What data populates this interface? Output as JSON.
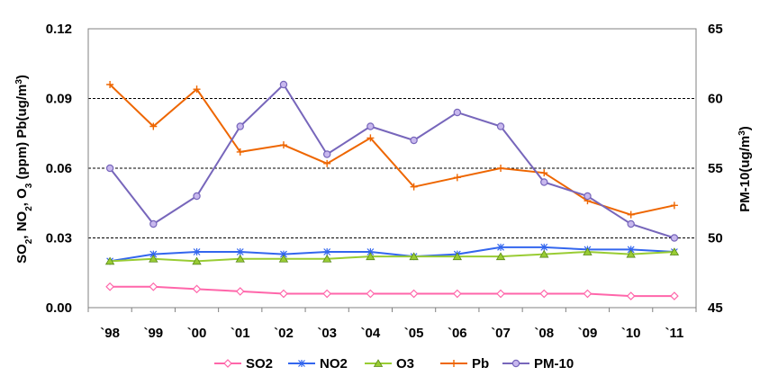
{
  "chart_data": {
    "type": "line",
    "categories": [
      "`98",
      "`99",
      "`00",
      "`01",
      "`02",
      "`03",
      "`04",
      "`05",
      "`06",
      "`07",
      "`08",
      "`09",
      "`10",
      "`11"
    ],
    "left_axis": {
      "label_parts": [
        "SO",
        "2",
        ", NO",
        "2",
        ", O",
        "3",
        " (ppm)  Pb(ug/m",
        "3",
        ")"
      ],
      "ylim": [
        0,
        0.12
      ],
      "ticks": [
        "0.00",
        "0.03",
        "0.06",
        "0.09",
        "0.12"
      ]
    },
    "right_axis": {
      "label_parts": [
        "PM-10(ug/m",
        "3",
        ")"
      ],
      "ylim": [
        45,
        65
      ],
      "ticks": [
        "45",
        "50",
        "55",
        "60",
        "65"
      ]
    },
    "gridlines": [
      0.03,
      0.06,
      0.09
    ],
    "legend_position": "bottom",
    "series": [
      {
        "name": "SO2",
        "axis": "left",
        "color": "#ff66aa",
        "marker": "diamond",
        "values": [
          0.009,
          0.009,
          0.008,
          0.007,
          0.006,
          0.006,
          0.006,
          0.006,
          0.006,
          0.006,
          0.006,
          0.006,
          0.005,
          0.005
        ]
      },
      {
        "name": "NO2",
        "axis": "left",
        "color": "#3366ee",
        "marker": "star",
        "values": [
          0.02,
          0.023,
          0.024,
          0.024,
          0.023,
          0.024,
          0.024,
          0.022,
          0.023,
          0.026,
          0.026,
          0.025,
          0.025,
          0.024
        ]
      },
      {
        "name": "O3",
        "axis": "left",
        "color": "#99cc33",
        "marker": "triangle",
        "values": [
          0.02,
          0.021,
          0.02,
          0.021,
          0.021,
          0.021,
          0.022,
          0.022,
          0.022,
          0.022,
          0.023,
          0.024,
          0.023,
          0.024
        ]
      },
      {
        "name": "Pb",
        "axis": "left",
        "color": "#ee6600",
        "marker": "plus",
        "values": [
          0.096,
          0.078,
          0.094,
          0.067,
          0.07,
          0.062,
          0.073,
          0.052,
          0.056,
          0.06,
          0.058,
          0.046,
          0.04,
          0.044
        ]
      },
      {
        "name": "PM-10",
        "axis": "right",
        "color": "#7766bb",
        "marker": "circle",
        "values": [
          55,
          51,
          53,
          58,
          61,
          56,
          58,
          57,
          59,
          58,
          54,
          53,
          51,
          50
        ]
      }
    ]
  }
}
